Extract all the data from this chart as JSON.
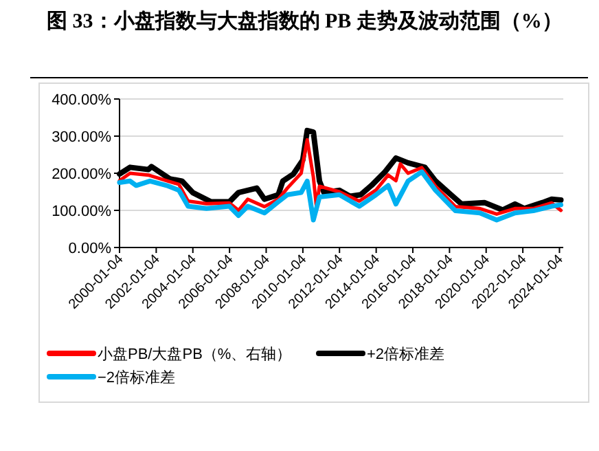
{
  "chart_data": {
    "type": "line",
    "title": "图 33：小盘指数与大盘指数的 PB 走势及波动范围（%）",
    "xlim": [
      "2000-01-04",
      "2024-03-20"
    ],
    "xticks": [
      "2000-01-04",
      "2002-01-04",
      "2004-01-04",
      "2006-01-04",
      "2008-01-04",
      "2010-01-04",
      "2012-01-04",
      "2014-01-04",
      "2016-01-04",
      "2018-01-04",
      "2020-01-04",
      "2022-01-04",
      "2024-01-04"
    ],
    "ylim": [
      0,
      400
    ],
    "yticks": [
      {
        "value": 0,
        "label": "0.00%"
      },
      {
        "value": 100,
        "label": "100.00%"
      },
      {
        "value": 200,
        "label": "200.00%"
      },
      {
        "value": 300,
        "label": "300.00%"
      },
      {
        "value": 400,
        "label": "400.00%"
      }
    ],
    "grid": "y",
    "legend": "bottom",
    "line_style": "solid",
    "series": [
      {
        "name": "小盘PB/大盘PB（%、右轴）",
        "color": "#ff0000",
        "x": [
          "2000-01-04",
          "2000-08",
          "2001-08",
          "2002-08",
          "2003-04",
          "2003-10",
          "2004-10",
          "2006-01",
          "2006-07",
          "2007-01",
          "2007-12",
          "2008-09",
          "2009-03",
          "2009-12",
          "2010-04",
          "2010-08",
          "2010-10",
          "2010-12",
          "2012-01",
          "2013-02",
          "2014-01",
          "2014-09",
          "2015-02",
          "2015-05",
          "2015-10",
          "2016-07",
          "2017-04",
          "2018-05",
          "2019-09",
          "2020-08",
          "2021-08",
          "2022-08",
          "2023-08",
          "2024-02"
        ],
        "values": [
          180,
          200,
          195,
          180,
          170,
          125,
          118,
          120,
          100,
          130,
          110,
          130,
          160,
          200,
          290,
          190,
          110,
          165,
          150,
          125,
          155,
          195,
          180,
          225,
          200,
          215,
          165,
          110,
          105,
          90,
          105,
          105,
          120,
          100
        ]
      },
      {
        "name": "+2倍标准差",
        "color": "#000000",
        "x": [
          "2000-01-04",
          "2000-08",
          "2001-08",
          "2001-10",
          "2002-10",
          "2003-06",
          "2004-01",
          "2005-01",
          "2006-01",
          "2006-07",
          "2007-07",
          "2007-12",
          "2008-09",
          "2008-12",
          "2009-07",
          "2010-01",
          "2010-04",
          "2010-08",
          "2010-12",
          "2011-03",
          "2012-01",
          "2012-08",
          "2013-03",
          "2013-10",
          "2014-07",
          "2015-02",
          "2015-10",
          "2016-09",
          "2017-04",
          "2018-02",
          "2018-09",
          "2019-12",
          "2020-12",
          "2021-08",
          "2022-02",
          "2023-02",
          "2023-08",
          "2024-02"
        ],
        "values": [
          198,
          216,
          210,
          218,
          185,
          179,
          148,
          123,
          123,
          148,
          160,
          130,
          142,
          179,
          198,
          235,
          315,
          311,
          179,
          148,
          154,
          138,
          142,
          167,
          204,
          241,
          228,
          216,
          179,
          142,
          117,
          121,
          101,
          117,
          105,
          121,
          130,
          128
        ]
      },
      {
        "name": "−2倍标准差",
        "color": "#00b0f0",
        "x": [
          "2000-01-04",
          "2000-08",
          "2000-12",
          "2001-09",
          "2002-08",
          "2003-04",
          "2003-10",
          "2004-10",
          "2006-01",
          "2006-07",
          "2007-01",
          "2007-12",
          "2008-09",
          "2009-03",
          "2009-12",
          "2010-04",
          "2010-08",
          "2010-12",
          "2012-01",
          "2013-02",
          "2014-01",
          "2014-09",
          "2015-02",
          "2015-10",
          "2016-07",
          "2017-04",
          "2018-05",
          "2019-09",
          "2020-08",
          "2021-08",
          "2022-08",
          "2023-08",
          "2024-02"
        ],
        "values": [
          175,
          179,
          167,
          179,
          167,
          154,
          111,
          105,
          111,
          86,
          111,
          93,
          123,
          142,
          148,
          179,
          74,
          136,
          142,
          111,
          142,
          167,
          117,
          179,
          204,
          154,
          99,
          93,
          74,
          93,
          99,
          111,
          115
        ]
      }
    ]
  }
}
